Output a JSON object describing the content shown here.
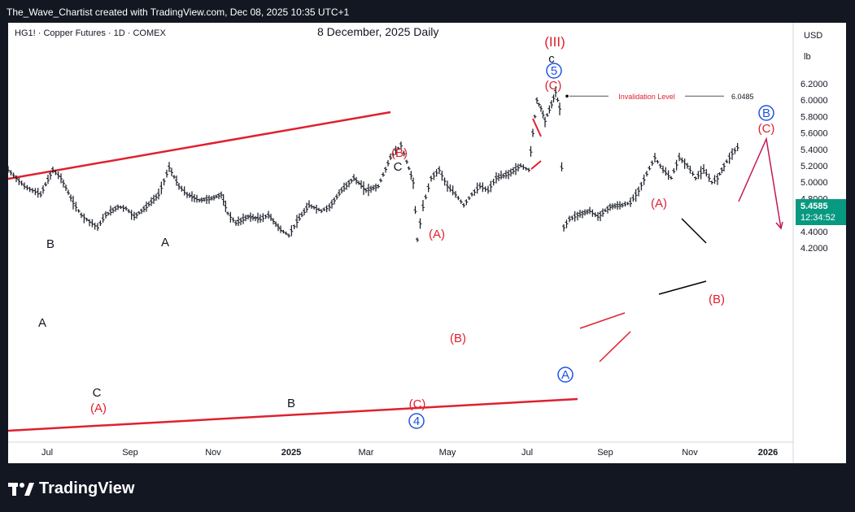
{
  "header": {
    "credit": "The_Wave_Chartist created with TradingView.com, Dec 08, 2025 10:35 UTC+1"
  },
  "symbol_line": "HG1! · Copper Futures · 1D · COMEX",
  "date_label": "8 December, 2025   Daily",
  "axis_units": {
    "currency": "USD",
    "unit": "lb"
  },
  "current_price": {
    "price": "5.4585",
    "countdown": "12:34:52"
  },
  "footer": {
    "brand": "TradingView"
  },
  "colors": {
    "up": "#131722",
    "red": "#e0202e",
    "blue": "#1e53e5",
    "purple": "#c2185b",
    "badge": "#089981"
  },
  "chart_data": {
    "type": "line",
    "x_ticks": [
      "Jul",
      "Sep",
      "Nov",
      "2025",
      "Mar",
      "May",
      "Jul",
      "Sep",
      "Nov",
      "2026"
    ],
    "y_ticks": [
      "6.2000",
      "6.0000",
      "5.8000",
      "5.6000",
      "5.4000",
      "5.2000",
      "5.0000",
      "4.8000",
      "4.6000",
      "4.4000",
      "4.2000"
    ],
    "ylim": [
      4.05,
      6.35
    ],
    "series": [
      {
        "name": "",
        "points": [
          [
            0,
            5.15
          ],
          [
            10,
            5.05
          ],
          [
            20,
            4.95
          ],
          [
            30,
            4.9
          ],
          [
            40,
            4.85
          ],
          [
            55,
            5.15
          ],
          [
            65,
            5.05
          ],
          [
            80,
            4.75
          ],
          [
            90,
            4.6
          ],
          [
            100,
            4.52
          ],
          [
            110,
            4.45
          ],
          [
            120,
            4.6
          ],
          [
            135,
            4.7
          ],
          [
            145,
            4.68
          ],
          [
            155,
            4.58
          ],
          [
            170,
            4.7
          ],
          [
            185,
            4.85
          ],
          [
            195,
            5.1
          ],
          [
            198,
            5.18
          ],
          [
            210,
            4.95
          ],
          [
            220,
            4.85
          ],
          [
            235,
            4.78
          ],
          [
            250,
            4.8
          ],
          [
            262,
            4.85
          ],
          [
            270,
            4.62
          ],
          [
            280,
            4.5
          ],
          [
            295,
            4.58
          ],
          [
            310,
            4.55
          ],
          [
            320,
            4.6
          ],
          [
            335,
            4.42
          ],
          [
            345,
            4.35
          ],
          [
            355,
            4.52
          ],
          [
            370,
            4.72
          ],
          [
            385,
            4.65
          ],
          [
            395,
            4.7
          ],
          [
            410,
            4.9
          ],
          [
            425,
            5.05
          ],
          [
            440,
            4.9
          ],
          [
            455,
            4.95
          ],
          [
            470,
            5.3
          ],
          [
            483,
            5.45
          ],
          [
            490,
            5.25
          ],
          [
            498,
            5.0
          ],
          [
            503,
            4.3
          ],
          [
            510,
            4.7
          ],
          [
            520,
            5.05
          ],
          [
            530,
            5.15
          ],
          [
            540,
            4.95
          ],
          [
            550,
            4.85
          ],
          [
            560,
            4.72
          ],
          [
            570,
            4.85
          ],
          [
            580,
            4.95
          ],
          [
            590,
            4.9
          ],
          [
            600,
            5.05
          ],
          [
            615,
            5.1
          ],
          [
            630,
            5.2
          ],
          [
            640,
            5.15
          ],
          [
            645,
            5.6
          ],
          [
            650,
            6.0
          ],
          [
            655,
            5.9
          ],
          [
            660,
            5.75
          ],
          [
            668,
            5.95
          ],
          [
            673,
            6.1
          ],
          [
            678,
            5.9
          ],
          [
            683,
            4.45
          ],
          [
            690,
            4.55
          ],
          [
            700,
            4.6
          ],
          [
            715,
            4.65
          ],
          [
            725,
            4.58
          ],
          [
            740,
            4.7
          ],
          [
            755,
            4.72
          ],
          [
            765,
            4.75
          ],
          [
            775,
            4.9
          ],
          [
            785,
            5.1
          ],
          [
            795,
            5.3
          ],
          [
            805,
            5.15
          ],
          [
            815,
            5.05
          ],
          [
            825,
            5.3
          ],
          [
            835,
            5.2
          ],
          [
            845,
            5.05
          ],
          [
            855,
            5.15
          ],
          [
            865,
            5.0
          ],
          [
            872,
            5.05
          ],
          [
            880,
            5.2
          ],
          [
            890,
            5.35
          ],
          [
            900,
            5.46
          ]
        ]
      }
    ],
    "annotations": [
      {
        "label": "B",
        "color": "black"
      },
      {
        "label": "A",
        "color": "black"
      },
      {
        "label": "C",
        "color": "black"
      },
      {
        "label": "(A)",
        "color": "red"
      },
      {
        "label": "A",
        "color": "black"
      },
      {
        "label": "B",
        "color": "black"
      },
      {
        "label": "(B)",
        "color": "red"
      },
      {
        "label": "C",
        "color": "black"
      },
      {
        "label": "(C)",
        "color": "red"
      },
      {
        "label": "4",
        "color": "blue"
      },
      {
        "label": "(A)",
        "color": "red"
      },
      {
        "label": "(B)",
        "color": "red"
      },
      {
        "label": "(III)",
        "color": "red"
      },
      {
        "label": "c",
        "color": "black"
      },
      {
        "label": "5",
        "color": "blue"
      },
      {
        "label": "(C)",
        "color": "red"
      },
      {
        "label": "A",
        "color": "blue"
      },
      {
        "label": "(A)",
        "color": "red"
      },
      {
        "label": "(B)",
        "color": "red"
      },
      {
        "label": "B",
        "color": "blue"
      },
      {
        "label": "(C)",
        "color": "red"
      }
    ],
    "invalidation": {
      "label": "Invalidation Level",
      "value": "6.0485"
    }
  }
}
